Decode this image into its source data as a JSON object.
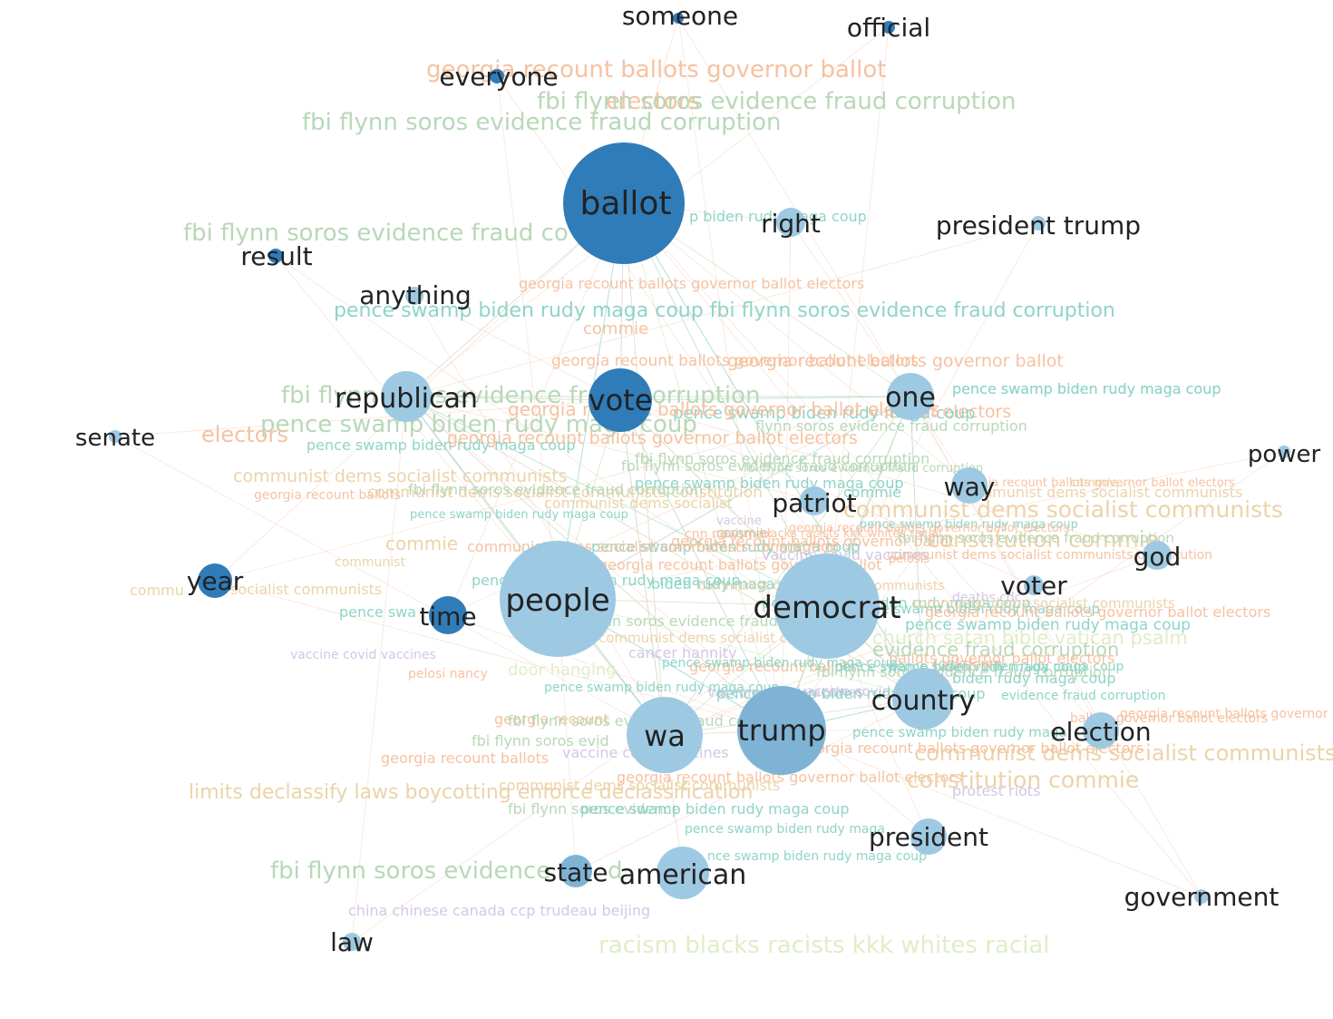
{
  "colors": {
    "node_dark": "#2f7cb9",
    "node_mid": "#7fb3d5",
    "node_light": "#9ec9e2",
    "node_label": "#222222",
    "topic_green": "#b8d8b8",
    "topic_orange": "#f6c2a0",
    "topic_teal": "#8fd4c8",
    "topic_tan": "#ecd3a9",
    "topic_purple": "#d5c6e6",
    "topic_pale": "#dfeec7",
    "edge": "#f2d0bf"
  },
  "nodes": [
    {
      "id": "someone",
      "label": "someone",
      "shade": "node_dark"
    },
    {
      "id": "official",
      "label": "official",
      "shade": "node_dark"
    },
    {
      "id": "everyone",
      "label": "everyone",
      "shade": "node_dark"
    },
    {
      "id": "ballot",
      "label": "ballot",
      "shade": "node_dark"
    },
    {
      "id": "right",
      "label": "right",
      "shade": "node_light"
    },
    {
      "id": "president_trump",
      "label": "president trump",
      "shade": "node_light"
    },
    {
      "id": "result",
      "label": "result",
      "shade": "node_dark"
    },
    {
      "id": "anything",
      "label": "anything",
      "shade": "node_light"
    },
    {
      "id": "republican",
      "label": "republican",
      "shade": "node_light"
    },
    {
      "id": "vote",
      "label": "vote",
      "shade": "node_dark"
    },
    {
      "id": "one",
      "label": "one",
      "shade": "node_light"
    },
    {
      "id": "senate",
      "label": "senate",
      "shade": "node_light"
    },
    {
      "id": "way",
      "label": "way",
      "shade": "node_light"
    },
    {
      "id": "patriot",
      "label": "patriot",
      "shade": "node_light"
    },
    {
      "id": "power",
      "label": "power",
      "shade": "node_light"
    },
    {
      "id": "god",
      "label": "god",
      "shade": "node_light"
    },
    {
      "id": "year",
      "label": "year",
      "shade": "node_dark"
    },
    {
      "id": "people",
      "label": "people",
      "shade": "node_light"
    },
    {
      "id": "democrat",
      "label": "democrat",
      "shade": "node_light"
    },
    {
      "id": "voter",
      "label": "voter",
      "shade": "node_light"
    },
    {
      "id": "time",
      "label": "time",
      "shade": "node_dark"
    },
    {
      "id": "country",
      "label": "country",
      "shade": "node_light"
    },
    {
      "id": "wa",
      "label": "wa",
      "shade": "node_light"
    },
    {
      "id": "trump",
      "label": "trump",
      "shade": "node_mid"
    },
    {
      "id": "election",
      "label": "election",
      "shade": "node_light"
    },
    {
      "id": "president",
      "label": "president",
      "shade": "node_light"
    },
    {
      "id": "state",
      "label": "state",
      "shade": "node_mid"
    },
    {
      "id": "american",
      "label": "american",
      "shade": "node_light"
    },
    {
      "id": "government",
      "label": "government",
      "shade": "node_light"
    },
    {
      "id": "law",
      "label": "law",
      "shade": "node_light"
    }
  ],
  "topics": [
    {
      "text": "georgia recount ballots governor ballot",
      "color": "topic_orange"
    },
    {
      "text": "electors",
      "color": "topic_orange"
    },
    {
      "text": "fbi flynn soros evidence fraud corruption",
      "color": "topic_green"
    },
    {
      "text": "fbi flynn soros evidence fraud corruption",
      "color": "topic_green"
    },
    {
      "text": "fbi flynn soros evidence fraud co",
      "color": "topic_green"
    },
    {
      "text": "p biden rudy maga coup",
      "color": "topic_teal"
    },
    {
      "text": "georgia recount ballots governor ballot electors",
      "color": "topic_orange"
    },
    {
      "text": "pence swamp biden rudy maga coup fbi flynn soros evidence fraud corruption",
      "color": "topic_teal"
    },
    {
      "text": "commie",
      "color": "topic_orange"
    },
    {
      "text": "georgia recount ballots governor ballot electors",
      "color": "topic_orange"
    },
    {
      "text": "georgia recount ballots governor ballot",
      "color": "topic_orange"
    },
    {
      "text": "fbi flynn soros evidence fraud corruption",
      "color": "topic_green"
    },
    {
      "text": "pence swamp biden rudy maga coup",
      "color": "topic_teal"
    },
    {
      "text": "ballot electors",
      "color": "topic_orange"
    },
    {
      "text": "pence swamp biden rudy maga coup",
      "color": "topic_green"
    },
    {
      "text": "electors",
      "color": "topic_orange"
    },
    {
      "text": "georgia recount ballots governor ballot electors",
      "color": "topic_orange"
    },
    {
      "text": "pence swamp biden rudy maga coup",
      "color": "topic_teal"
    },
    {
      "text": "fbi flynn soros evidence fraud corruption",
      "color": "topic_green"
    },
    {
      "text": "communist dems socialist communists",
      "color": "topic_tan"
    },
    {
      "text": "communist dems socialist communists constitution",
      "color": "topic_tan"
    },
    {
      "text": "georgia recount ballots",
      "color": "topic_orange"
    },
    {
      "text": "pence swamp biden rudy maga coup",
      "color": "topic_teal"
    },
    {
      "text": "communist dems socialist communists",
      "color": "topic_tan"
    },
    {
      "text": "constitution commie",
      "color": "topic_tan"
    },
    {
      "text": "commie",
      "color": "topic_tan"
    },
    {
      "text": "communist",
      "color": "topic_tan"
    },
    {
      "text": "commu",
      "color": "topic_tan"
    },
    {
      "text": "ms socialist communists",
      "color": "topic_tan"
    },
    {
      "text": "pence swa",
      "color": "topic_teal"
    },
    {
      "text": "biden rudy maga c",
      "color": "topic_teal"
    },
    {
      "text": "pence swamp biden rudy maga coup",
      "color": "topic_teal"
    },
    {
      "text": "pence swamp biden rudy maga coup",
      "color": "topic_teal"
    },
    {
      "text": "church satan bible vatican psalm",
      "color": "topic_pale"
    },
    {
      "text": "evidence fraud corruption",
      "color": "topic_green"
    },
    {
      "text": "vaccine covid vaccines",
      "color": "topic_purple"
    },
    {
      "text": "cancer hannity",
      "color": "topic_purple"
    },
    {
      "text": "pelosi nancy",
      "color": "topic_orange"
    },
    {
      "text": "biden rudy maga coup",
      "color": "topic_teal"
    },
    {
      "text": "evidence fraud corruption",
      "color": "topic_teal"
    },
    {
      "text": "georgia recount",
      "color": "topic_orange"
    },
    {
      "text": "ballots governor ballot electors",
      "color": "topic_orange"
    },
    {
      "text": "pence swamp biden rudy maga",
      "color": "topic_teal"
    },
    {
      "text": "fbi flynn soros evid",
      "color": "topic_green"
    },
    {
      "text": "georgia recount ballots",
      "color": "topic_orange"
    },
    {
      "text": "communist dems socialist communists",
      "color": "topic_tan"
    },
    {
      "text": "limits declassify laws boycotting enforce declassification",
      "color": "topic_tan"
    },
    {
      "text": "georgia recount ballots governor ballot electors",
      "color": "topic_orange"
    },
    {
      "text": "constitution commie",
      "color": "topic_tan"
    },
    {
      "text": "communist dems socialist communists",
      "color": "topic_tan"
    },
    {
      "text": "protest riots",
      "color": "topic_purple"
    },
    {
      "text": "fbi flynn soros evidence",
      "color": "topic_green"
    },
    {
      "text": "pence swamp biden rudy maga coup",
      "color": "topic_teal"
    },
    {
      "text": "pence swamp biden rudy maga",
      "color": "topic_teal"
    },
    {
      "text": "nce swamp biden rudy maga coup",
      "color": "topic_teal"
    },
    {
      "text": "fbi flynn soros evidence",
      "color": "topic_green"
    },
    {
      "text": "d",
      "color": "topic_green"
    },
    {
      "text": "china chinese canada ccp trudeau beijing",
      "color": "topic_purple"
    },
    {
      "text": "racism blacks racists kkk whites racial",
      "color": "topic_pale"
    },
    {
      "text": "pence swamp biden rudy maga coup",
      "color": "topic_teal"
    },
    {
      "text": "flynn soros evidence fraud corruption",
      "color": "topic_green"
    },
    {
      "text": "pence swamp biden rudy maga coup",
      "color": "topic_teal"
    },
    {
      "text": "georgia recount ballots governor ballot electors",
      "color": "topic_orange"
    },
    {
      "text": "pence swamp biden rudy maga coup",
      "color": "topic_teal"
    },
    {
      "text": "fbi flynn soros evidence fraud corruption",
      "color": "topic_green"
    },
    {
      "text": "communist dems socialist communists",
      "color": "topic_tan"
    },
    {
      "text": "commie",
      "color": "topic_teal"
    },
    {
      "text": "georgia recount ballots governor ballot",
      "color": "topic_orange"
    },
    {
      "text": "communist dems socialist communists constitution",
      "color": "topic_orange"
    },
    {
      "text": "vaccine covid vaccines",
      "color": "topic_purple"
    },
    {
      "text": "fbi flynn soros evidence fraud corruption",
      "color": "topic_green"
    },
    {
      "text": "communist dems socialist communists",
      "color": "topic_tan"
    },
    {
      "text": "ballots governor ballot electors",
      "color": "topic_orange"
    },
    {
      "text": "georgia recount ballots governor ballot electors",
      "color": "topic_orange"
    },
    {
      "text": "vaccine covid vaccines",
      "color": "topic_purple"
    },
    {
      "text": "deaths cdc",
      "color": "topic_purple"
    },
    {
      "text": "pence swamp biden rudy maga coup",
      "color": "topic_teal"
    },
    {
      "text": "commie",
      "color": "topic_tan"
    },
    {
      "text": "georgia recount ballots governor ballot electors",
      "color": "topic_orange"
    },
    {
      "text": "fbi flynn soros evidence fraud corruption",
      "color": "topic_green"
    },
    {
      "text": "pence swamp biden rudy maga coup",
      "color": "topic_teal"
    },
    {
      "text": "commie",
      "color": "topic_teal"
    },
    {
      "text": "communist dems socialist",
      "color": "topic_tan"
    },
    {
      "text": "fbi flynn soros evidence fraud corruption",
      "color": "topic_green"
    },
    {
      "text": "pence swamp biden rudy maga coup",
      "color": "topic_teal"
    },
    {
      "text": "racism blacks racists kkk whites racial",
      "color": "topic_orange"
    },
    {
      "text": "communist dems socialist communists constitution",
      "color": "topic_orange"
    },
    {
      "text": "vaccine covid vaccines",
      "color": "topic_purple"
    },
    {
      "text": "pelosis",
      "color": "topic_orange"
    },
    {
      "text": "vaccine",
      "color": "topic_purple"
    },
    {
      "text": "cnn newsmax",
      "color": "topic_orange"
    },
    {
      "text": "georgia recount ballots governor ballot",
      "color": "topic_orange"
    },
    {
      "text": "communist dems socialist communists",
      "color": "topic_tan"
    },
    {
      "text": "pence swamp biden rudy maga coup",
      "color": "topic_teal"
    },
    {
      "text": "georgia recount ballots",
      "color": "topic_orange"
    },
    {
      "text": "pence swamp biden rudy maga coup",
      "color": "topic_teal"
    },
    {
      "text": "lockdown",
      "color": "topic_orange"
    },
    {
      "text": "door hanging",
      "color": "topic_pale"
    },
    {
      "text": "pence swamp biden rudy maga coup",
      "color": "topic_teal"
    },
    {
      "text": "fbi flynn soros evidence fraud corruption",
      "color": "topic_green"
    },
    {
      "text": "georgia recount ballots governor ballot electors",
      "color": "topic_orange"
    },
    {
      "text": "fbi flynn soros evidence fraud corruption",
      "color": "topic_green"
    },
    {
      "text": "pence swamp biden rudy maga coup",
      "color": "topic_teal"
    },
    {
      "text": "vaccine covid vaccines",
      "color": "topic_purple"
    },
    {
      "text": "georgia recount ballots governor ballot electors",
      "color": "topic_orange"
    },
    {
      "text": "communist dems socialist communists",
      "color": "topic_tan"
    },
    {
      "text": "pence swamp biden rudy maga coup",
      "color": "topic_teal"
    },
    {
      "text": "fbi flynn soros evidence fraud corruption",
      "color": "topic_green"
    },
    {
      "text": "georgia recount ballots governor ballot electors",
      "color": "topic_orange"
    },
    {
      "text": "pence swamp biden rudy maga coup",
      "color": "topic_teal"
    }
  ]
}
